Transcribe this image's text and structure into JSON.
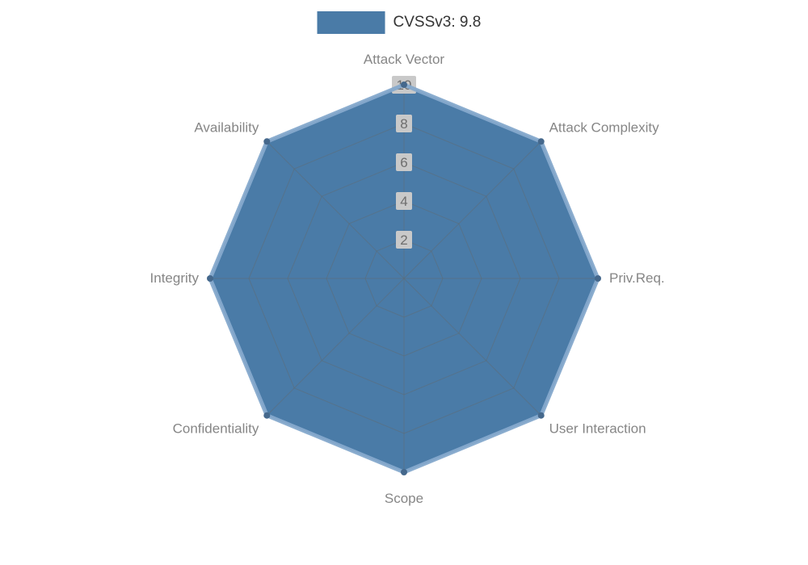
{
  "legend": {
    "label": "CVSSv3: 9.8",
    "color": "#4a7ba7"
  },
  "chart_data": {
    "type": "radar",
    "categories": [
      "Attack Vector",
      "Attack Complexity",
      "Priv.Req.",
      "User Interaction",
      "Scope",
      "Confidentiality",
      "Integrity",
      "Availability"
    ],
    "series": [
      {
        "name": "CVSSv3: 9.8",
        "values": [
          10,
          10,
          10,
          10,
          10,
          10,
          10,
          10
        ],
        "fill_color": "#4a7ba7",
        "line_color": "#85a9cc",
        "dot_color": "#45688c"
      }
    ],
    "ticks": [
      2,
      4,
      6,
      8,
      10
    ],
    "max": 10,
    "grid": true,
    "legend_position": "top-center",
    "axis_label_color": "#868686",
    "tick_label_color": "#6e6e6e",
    "tick_label_bg": "#c9c9c9",
    "grid_color": "#5f6b75"
  }
}
